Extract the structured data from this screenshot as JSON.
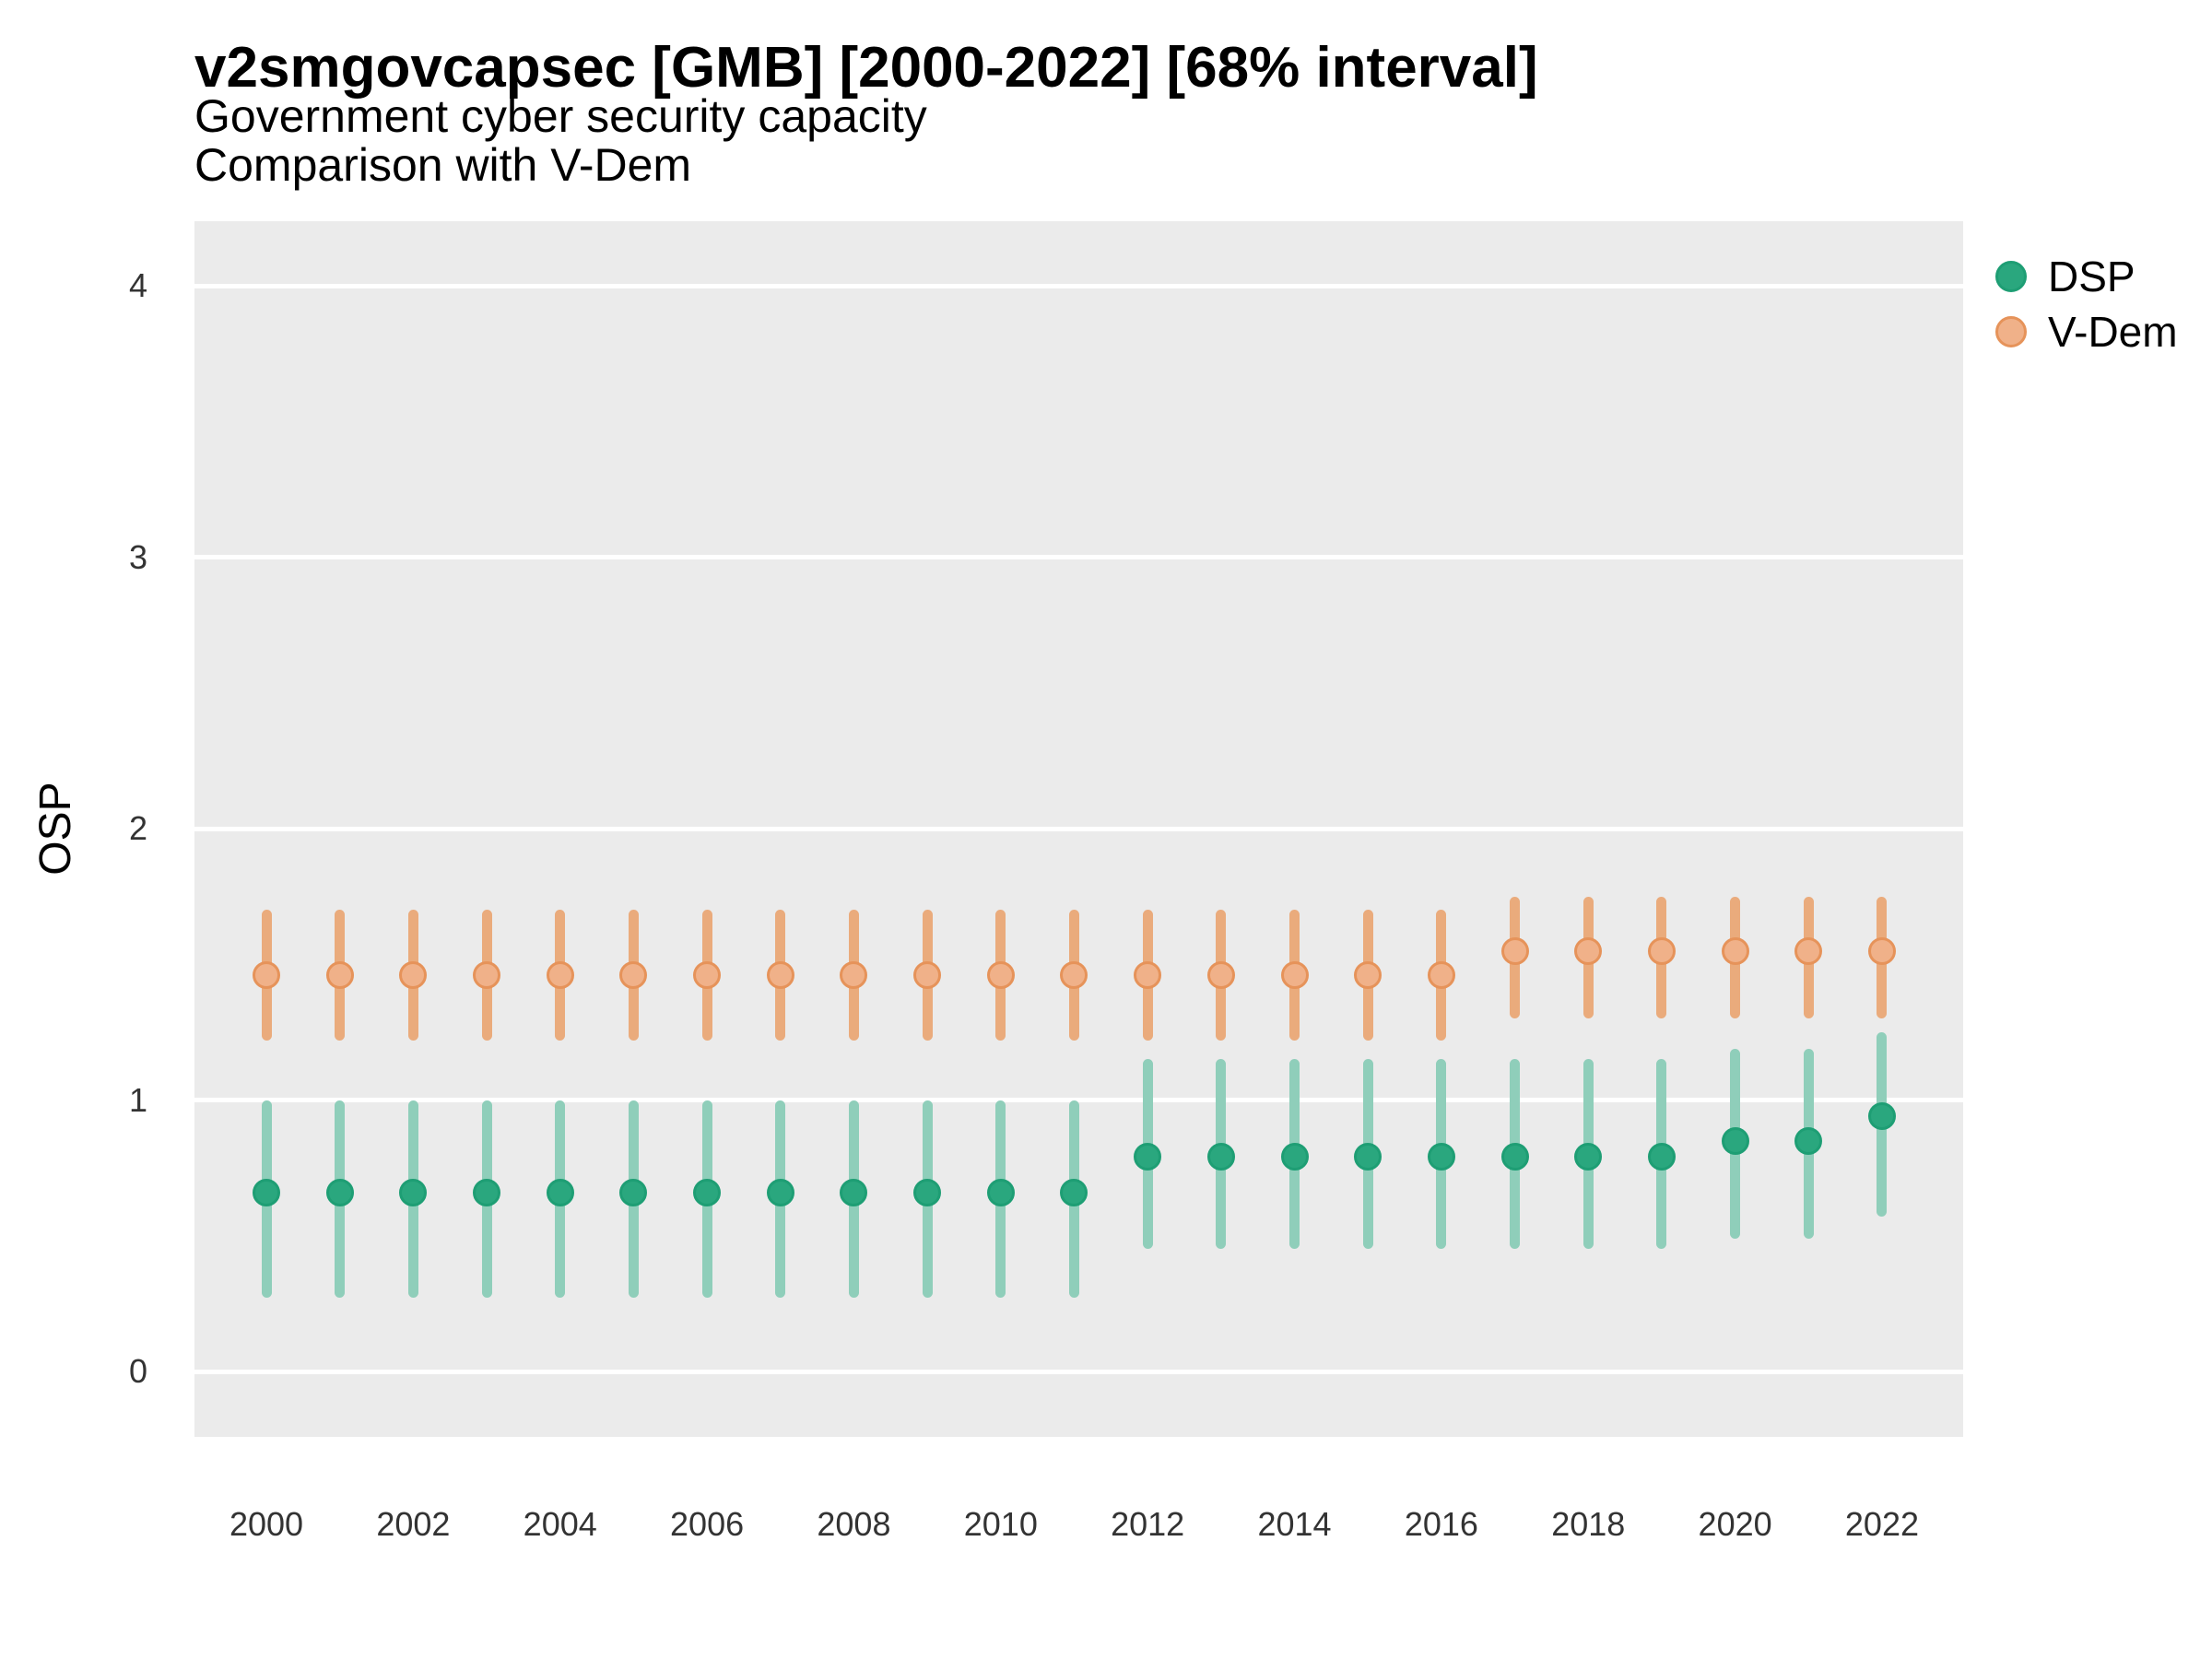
{
  "title": "v2smgovcapsec [GMB] [2000-2022] [68% interval]",
  "subtitle_line1": "Government cyber security capacity",
  "subtitle_line2": "Comparison with V-Dem",
  "y_axis": {
    "label": "OSP",
    "ticks": [
      "0",
      "1",
      "2",
      "3",
      "4"
    ]
  },
  "x_axis": {
    "tick_labels": [
      "2000",
      "2002",
      "2004",
      "2006",
      "2008",
      "2010",
      "2012",
      "2014",
      "2016",
      "2018",
      "2020",
      "2022"
    ]
  },
  "legend": {
    "items": [
      {
        "label": "DSP"
      },
      {
        "label": "V-Dem"
      }
    ]
  },
  "colors": {
    "panel_background": "#EBEBEB",
    "grid_line": "#FFFFFF",
    "title_text": "#000000",
    "axis_text": "#333333",
    "dsp_point_fill": "#2AA77E",
    "dsp_point_stroke": "#1E9E74",
    "dsp_interval": "#8FCEBA",
    "vdem_point_fill": "#F0B189",
    "vdem_point_stroke": "#E6935A",
    "vdem_interval": "#EAAB7C"
  },
  "chart_data": {
    "type": "pointrange",
    "interval_level": "68%",
    "title": "v2smgovcapsec [GMB] [2000-2022] [68% interval]",
    "subtitle": "Government cyber security capacity — Comparison with V-Dem",
    "xlabel": "",
    "ylabel": "OSP",
    "ylim": [
      -0.24,
      4.24
    ],
    "y_ticks": [
      0,
      1,
      2,
      3,
      4
    ],
    "grid": "horizontal-major-only",
    "legend_position": "right-top",
    "x": [
      2000,
      2001,
      2002,
      2003,
      2004,
      2005,
      2006,
      2007,
      2008,
      2009,
      2010,
      2011,
      2012,
      2013,
      2014,
      2015,
      2016,
      2017,
      2018,
      2019,
      2020,
      2021,
      2022
    ],
    "series": [
      {
        "name": "DSP",
        "estimate": [
          0.66,
          0.66,
          0.66,
          0.66,
          0.66,
          0.66,
          0.66,
          0.66,
          0.66,
          0.66,
          0.66,
          0.66,
          0.79,
          0.79,
          0.79,
          0.79,
          0.79,
          0.79,
          0.79,
          0.79,
          0.85,
          0.85,
          0.94
        ],
        "lower": [
          0.27,
          0.27,
          0.27,
          0.27,
          0.27,
          0.27,
          0.27,
          0.27,
          0.27,
          0.27,
          0.27,
          0.27,
          0.45,
          0.45,
          0.45,
          0.45,
          0.45,
          0.45,
          0.45,
          0.45,
          0.49,
          0.49,
          0.57
        ],
        "upper": [
          1.0,
          1.0,
          1.0,
          1.0,
          1.0,
          1.0,
          1.0,
          1.0,
          1.0,
          1.0,
          1.0,
          1.0,
          1.15,
          1.15,
          1.15,
          1.15,
          1.15,
          1.15,
          1.15,
          1.15,
          1.19,
          1.19,
          1.25
        ]
      },
      {
        "name": "V-Dem",
        "estimate": [
          1.46,
          1.46,
          1.46,
          1.46,
          1.46,
          1.46,
          1.46,
          1.46,
          1.46,
          1.46,
          1.46,
          1.46,
          1.46,
          1.46,
          1.46,
          1.46,
          1.46,
          1.55,
          1.55,
          1.55,
          1.55,
          1.55,
          1.55
        ],
        "lower": [
          1.22,
          1.22,
          1.22,
          1.22,
          1.22,
          1.22,
          1.22,
          1.22,
          1.22,
          1.22,
          1.22,
          1.22,
          1.22,
          1.22,
          1.22,
          1.22,
          1.22,
          1.3,
          1.3,
          1.3,
          1.3,
          1.3,
          1.3
        ],
        "upper": [
          1.7,
          1.7,
          1.7,
          1.7,
          1.7,
          1.7,
          1.7,
          1.7,
          1.7,
          1.7,
          1.7,
          1.7,
          1.7,
          1.7,
          1.7,
          1.7,
          1.7,
          1.75,
          1.75,
          1.75,
          1.75,
          1.75,
          1.75
        ]
      }
    ]
  }
}
